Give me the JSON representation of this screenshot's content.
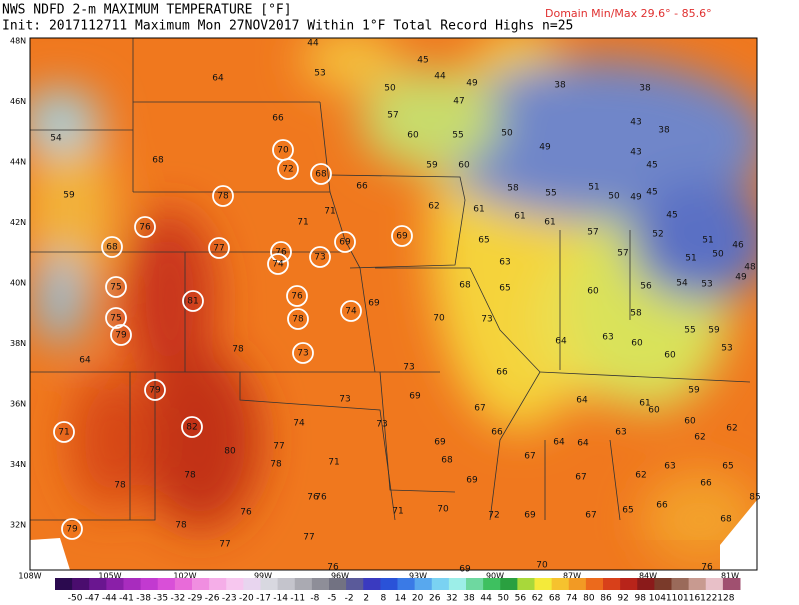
{
  "header": {
    "title": "NWS NDFD 2-m MAXIMUM TEMPERATURE [°F]",
    "init": "Init: 2017112711 Maximum Mon 27NOV2017  Within 1°F   Total Record Highs n=25",
    "domain_minmax": "Domain Min/Max  29.6° -  85.6°"
  },
  "latitude_labels": [
    "48N",
    "46N",
    "44N",
    "42N",
    "40N",
    "38N",
    "36N",
    "34N",
    "32N"
  ],
  "longitude_labels": [
    "108W",
    "105W",
    "102W",
    "99W",
    "96W",
    "93W",
    "90W",
    "87W",
    "84W",
    "81W"
  ],
  "colorbar_labels": [
    "-50",
    "-47",
    "-44",
    "-41",
    "-38",
    "-35",
    "-32",
    "-29",
    "-26",
    "-23",
    "-20",
    "-17",
    "-14",
    "-11",
    "-8",
    "-5",
    "-2",
    "2",
    "8",
    "14",
    "20",
    "26",
    "32",
    "38",
    "44",
    "50",
    "56",
    "62",
    "68",
    "74",
    "80",
    "86",
    "92",
    "98",
    "104",
    "110",
    "116",
    "122",
    "128"
  ],
  "stations": [
    {
      "value": 44
    },
    {
      "value": 53
    },
    {
      "value": 64
    },
    {
      "value": 45
    },
    {
      "value": 44
    },
    {
      "value": 49
    },
    {
      "value": 50
    },
    {
      "value": 47
    },
    {
      "value": 38
    },
    {
      "value": 38
    },
    {
      "value": 66
    },
    {
      "value": 57
    },
    {
      "value": 60
    },
    {
      "value": 55
    },
    {
      "value": 50
    },
    {
      "value": 49
    },
    {
      "value": 38
    },
    {
      "value": 43
    },
    {
      "value": 54
    },
    {
      "value": 68
    },
    {
      "value": 70,
      "record": true
    },
    {
      "value": 72,
      "record": true
    },
    {
      "value": 68,
      "record": true
    },
    {
      "value": 59
    },
    {
      "value": 60
    },
    {
      "value": 43
    },
    {
      "value": 45
    },
    {
      "value": 66
    },
    {
      "value": 58
    },
    {
      "value": 55
    },
    {
      "value": 51
    },
    {
      "value": 50
    },
    {
      "value": 49
    },
    {
      "value": 45
    },
    {
      "value": 59
    },
    {
      "value": 78,
      "record": true
    },
    {
      "value": 62
    },
    {
      "value": 61
    },
    {
      "value": 61
    },
    {
      "value": 61
    },
    {
      "value": 45
    },
    {
      "value": 71
    },
    {
      "value": 76,
      "record": true
    },
    {
      "value": 71
    },
    {
      "value": 69,
      "record": true
    },
    {
      "value": 69,
      "record": true
    },
    {
      "value": 57
    },
    {
      "value": 52
    },
    {
      "value": 51
    },
    {
      "value": 46
    },
    {
      "value": 68,
      "record": true
    },
    {
      "value": 77,
      "record": true
    },
    {
      "value": 76,
      "record": true
    },
    {
      "value": 74,
      "record": true
    },
    {
      "value": 73,
      "record": true
    },
    {
      "value": 65
    },
    {
      "value": 57
    },
    {
      "value": 51
    },
    {
      "value": 50
    },
    {
      "value": 48
    },
    {
      "value": 49
    },
    {
      "value": 63
    },
    {
      "value": 65
    },
    {
      "value": 68
    },
    {
      "value": 60
    },
    {
      "value": 56
    },
    {
      "value": 54
    },
    {
      "value": 53
    },
    {
      "value": 75,
      "record": true
    },
    {
      "value": 81,
      "record": true
    },
    {
      "value": 76,
      "record": true
    },
    {
      "value": 74,
      "record": true
    },
    {
      "value": 78,
      "record": true
    },
    {
      "value": 69
    },
    {
      "value": 70
    },
    {
      "value": 73
    },
    {
      "value": 58
    },
    {
      "value": 55
    },
    {
      "value": 59
    },
    {
      "value": 75,
      "record": true
    },
    {
      "value": 79,
      "record": true
    },
    {
      "value": 78
    },
    {
      "value": 73,
      "record": true
    },
    {
      "value": 64
    },
    {
      "value": 63
    },
    {
      "value": 60
    },
    {
      "value": 60
    },
    {
      "value": 53
    },
    {
      "value": 64
    },
    {
      "value": 73
    },
    {
      "value": 66
    },
    {
      "value": 59
    },
    {
      "value": 79,
      "record": true
    },
    {
      "value": 69
    },
    {
      "value": 73
    },
    {
      "value": 64
    },
    {
      "value": 61
    },
    {
      "value": 60
    },
    {
      "value": 60
    },
    {
      "value": 62
    },
    {
      "value": 67
    },
    {
      "value": 71,
      "record": true
    },
    {
      "value": 82,
      "record": true
    },
    {
      "value": 74
    },
    {
      "value": 73
    },
    {
      "value": 66
    },
    {
      "value": 63
    },
    {
      "value": 62
    },
    {
      "value": 64
    },
    {
      "value": 64
    },
    {
      "value": 80
    },
    {
      "value": 77
    },
    {
      "value": 69
    },
    {
      "value": 78
    },
    {
      "value": 71
    },
    {
      "value": 68
    },
    {
      "value": 67
    },
    {
      "value": 63
    },
    {
      "value": 65
    },
    {
      "value": 78
    },
    {
      "value": 78
    },
    {
      "value": 69
    },
    {
      "value": 67
    },
    {
      "value": 62
    },
    {
      "value": 66
    },
    {
      "value": 76
    },
    {
      "value": 76
    },
    {
      "value": 85
    },
    {
      "value": 71
    },
    {
      "value": 70
    },
    {
      "value": 72
    },
    {
      "value": 69
    },
    {
      "value": 67
    },
    {
      "value": 65
    },
    {
      "value": 66
    },
    {
      "value": 68
    },
    {
      "value": 79,
      "record": true
    },
    {
      "value": 78
    },
    {
      "value": 76
    },
    {
      "value": 77
    },
    {
      "value": 77
    },
    {
      "value": 76
    },
    {
      "value": 69
    },
    {
      "value": 70
    },
    {
      "value": 76
    }
  ]
}
